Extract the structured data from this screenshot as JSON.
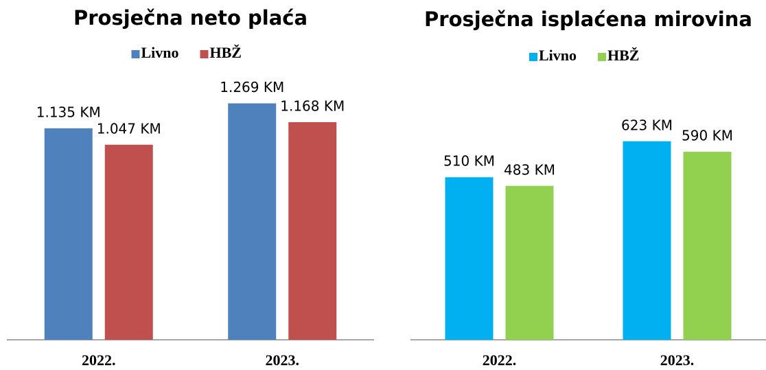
{
  "chart_data": [
    {
      "type": "bar",
      "title": "Prosječna neto plaća",
      "categories": [
        "2022.",
        "2023."
      ],
      "series": [
        {
          "name": "Livno",
          "color": "#4f81bd",
          "values": [
            1135,
            1269
          ],
          "value_labels": [
            "1.135 KM",
            "1.269 KM"
          ]
        },
        {
          "name": "HBŽ",
          "color": "#c0504d",
          "values": [
            1047,
            1168
          ],
          "value_labels": [
            "1.047 KM",
            "1.168 KM"
          ]
        }
      ],
      "ylim": [
        0,
        1400
      ],
      "legend": "top"
    },
    {
      "type": "bar",
      "title": "Prosječna isplaćena mirovina",
      "categories": [
        "2022.",
        "2023."
      ],
      "series": [
        {
          "name": "Livno",
          "color": "#00b0f0",
          "values": [
            510,
            623
          ],
          "value_labels": [
            "510 KM",
            "623 KM"
          ]
        },
        {
          "name": "HBŽ",
          "color": "#92d050",
          "values": [
            483,
            590
          ],
          "value_labels": [
            "483 KM",
            "590 KM"
          ]
        }
      ],
      "ylim": [
        0,
        700
      ],
      "legend": "top"
    }
  ]
}
